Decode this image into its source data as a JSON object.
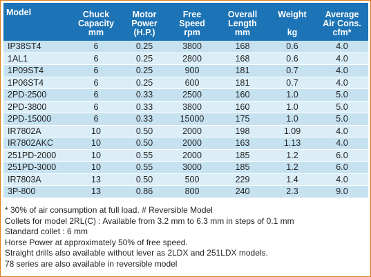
{
  "table": {
    "headers": [
      {
        "lines": [
          "Model"
        ]
      },
      {
        "lines": [
          "Chuck",
          "Capacity",
          "mm"
        ]
      },
      {
        "lines": [
          "Motor",
          "Power",
          "(H.P.)"
        ]
      },
      {
        "lines": [
          "Free",
          "Speed",
          "rpm"
        ]
      },
      {
        "lines": [
          "Overall",
          "Length",
          "mm"
        ]
      },
      {
        "lines": [
          "Weight",
          "",
          "kg"
        ]
      },
      {
        "lines": [
          "Average",
          "Air Cons.",
          "cfm*"
        ]
      }
    ],
    "rows": [
      [
        "IP38ST4",
        "6",
        "0.25",
        "3800",
        "168",
        "0.6",
        "4.0"
      ],
      [
        "1AL1",
        "6",
        "0.25",
        "2800",
        "168",
        "0.6",
        "4.0"
      ],
      [
        "1P09ST4",
        "6",
        "0.25",
        "900",
        "181",
        "0.7",
        "4.0"
      ],
      [
        "1P06ST4",
        "6",
        "0.25",
        "600",
        "181",
        "0.7",
        "4.0"
      ],
      [
        "2PD-2500",
        "6",
        "0.33",
        "2500",
        "160",
        "1.0",
        "5.0"
      ],
      [
        "2PD-3800",
        "6",
        "0.33",
        "3800",
        "160",
        "1.0",
        "5.0"
      ],
      [
        "2PD-15000",
        "6",
        "0.33",
        "15000",
        "175",
        "1.0",
        "5.0"
      ],
      [
        "IR7802A",
        "10",
        "0.50",
        "2000",
        "198",
        "1.09",
        "4.0"
      ],
      [
        "IR7802AKC",
        "10",
        "0.50",
        "2000",
        "163",
        "1.13",
        "4.0"
      ],
      [
        "251PD-2000",
        "10",
        "0.55",
        "2000",
        "185",
        "1.2",
        "6.0"
      ],
      [
        "251PD-3000",
        "10",
        "0.55",
        "3000",
        "185",
        "1.2",
        "6.0"
      ],
      [
        "IR7803A",
        "13",
        "0.50",
        "500",
        "229",
        "1.4",
        "4.0"
      ],
      [
        "3P-800",
        "13",
        "0.86",
        "800",
        "240",
        "2.3",
        "9.0"
      ]
    ]
  },
  "notes": [
    "* 30% of air consumption at full load. # Reversible Model",
    "Collets for model 2RL(C) : Available from 3.2 mm to 6.3 mm in steps of 0.1 mm",
    "Standard collet : 6 mm",
    "Horse Power at approximately 50% of free speed.",
    "Straight drills also available without lever as 2LDX and 251LDX models.",
    "78 series are also available in reversible model"
  ],
  "colors": {
    "header_bg": "#1c73b5",
    "row_odd": "#c6e2f1",
    "row_even": "#dbeef8",
    "frame_border": "#e07b1a"
  }
}
